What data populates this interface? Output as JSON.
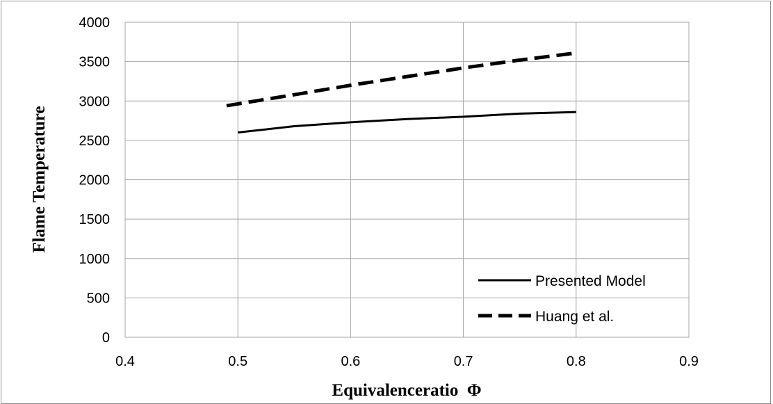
{
  "chart_data": {
    "type": "line",
    "title": "",
    "xlabel": "Equivalenceratio  Φ",
    "ylabel": "Flame Temperature",
    "xlim": [
      0.4,
      0.9
    ],
    "ylim": [
      0,
      4000
    ],
    "x_ticks": [
      "0.4",
      "0.5",
      "0.6",
      "0.7",
      "0.8",
      "0.9"
    ],
    "y_ticks": [
      "0",
      "500",
      "1000",
      "1500",
      "2000",
      "2500",
      "3000",
      "3500",
      "4000"
    ],
    "grid": true,
    "legend_position": "bottom-right",
    "series": [
      {
        "name": "Presented Model",
        "style": "solid",
        "color": "#000000",
        "x": [
          0.5,
          0.55,
          0.6,
          0.65,
          0.7,
          0.75,
          0.8
        ],
        "y": [
          2600,
          2680,
          2730,
          2770,
          2800,
          2840,
          2860
        ]
      },
      {
        "name": "Huang et al.",
        "style": "dashed",
        "color": "#000000",
        "x": [
          0.49,
          0.55,
          0.6,
          0.65,
          0.7,
          0.75,
          0.8
        ],
        "y": [
          2940,
          3080,
          3200,
          3310,
          3420,
          3520,
          3610
        ]
      }
    ]
  }
}
